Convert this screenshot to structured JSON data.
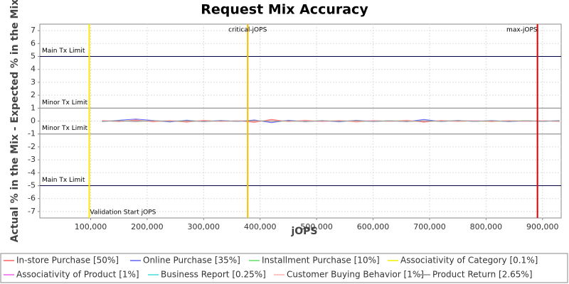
{
  "chart_data": {
    "type": "line",
    "title": "Request Mix Accuracy",
    "x_label": "jOPS",
    "y_label": "Actual % in the Mix - Expected % in the Mix",
    "xlim": [
      10000,
      933000
    ],
    "ylim": [
      -7.5,
      7.5
    ],
    "xticks": [
      {
        "value": 100000,
        "label": "100,000"
      },
      {
        "value": 200000,
        "label": "200,000"
      },
      {
        "value": 300000,
        "label": "300,000"
      },
      {
        "value": 400000,
        "label": "400,000"
      },
      {
        "value": 500000,
        "label": "500,000"
      },
      {
        "value": 600000,
        "label": "600,000"
      },
      {
        "value": 700000,
        "label": "700,000"
      },
      {
        "value": 800000,
        "label": "800,000"
      },
      {
        "value": 900000,
        "label": "900,000"
      }
    ],
    "yticks": [
      -7,
      -6,
      -5,
      -4,
      -3,
      -2,
      -1,
      0,
      1,
      2,
      3,
      4,
      5,
      6,
      7
    ],
    "grid": true,
    "limits": [
      {
        "label": "Main Tx Limit",
        "value": 5,
        "color": "#000040"
      },
      {
        "label": "Minor Tx Limit",
        "value": 1,
        "color": "#808080"
      },
      {
        "label": "Minor Tx Limit",
        "value": -1,
        "color": "#808080"
      },
      {
        "label": "Main Tx Limit",
        "value": -5,
        "color": "#000040"
      }
    ],
    "markers": [
      {
        "label": "Validation Start jOPS",
        "value": 97500,
        "color": "#ffe800"
      },
      {
        "label": "critical-jOPS",
        "value": 378000,
        "color": "#f0c000"
      },
      {
        "label": "max-jOPS",
        "value": 891000,
        "color": "#e00000"
      }
    ],
    "x": [
      120000,
      150000,
      180000,
      210000,
      240000,
      270000,
      300000,
      330000,
      360000,
      390000,
      420000,
      450000,
      480000,
      510000,
      540000,
      570000,
      600000,
      630000,
      660000,
      690000,
      720000,
      750000,
      780000,
      810000,
      840000,
      870000,
      900000,
      930000
    ],
    "series": [
      {
        "name": "In-store Purchase [50%]",
        "color": "#ff6060",
        "values": [
          0.05,
          -0.05,
          0.08,
          -0.06,
          0.04,
          -0.08,
          0.06,
          -0.04,
          0.03,
          -0.1,
          0.12,
          -0.05,
          0.06,
          -0.04,
          0.05,
          -0.07,
          0.04,
          -0.03,
          0.06,
          -0.08,
          0.05,
          -0.04,
          0.03,
          -0.05,
          0.04,
          -0.02,
          0.03,
          -0.04
        ]
      },
      {
        "name": "Online Purchase [35%]",
        "color": "#6060ff",
        "values": [
          -0.04,
          0.06,
          0.15,
          0.05,
          -0.07,
          0.07,
          -0.05,
          0.05,
          -0.03,
          0.08,
          -0.12,
          0.06,
          -0.05,
          0.04,
          -0.06,
          0.06,
          -0.04,
          0.03,
          -0.05,
          0.12,
          -0.04,
          0.05,
          -0.03,
          0.04,
          -0.05,
          0.03,
          -0.03,
          0.04
        ]
      },
      {
        "name": "Installment Purchase [10%]",
        "color": "#60e060",
        "values": [
          0.01,
          -0.02,
          0.03,
          -0.01,
          0.02,
          -0.03,
          0.02,
          -0.01,
          0.01,
          -0.02,
          0.03,
          -0.02,
          0.01,
          -0.01,
          0.02,
          -0.02,
          0.01,
          -0.01,
          0.02,
          -0.02,
          0.01,
          -0.01,
          0.01,
          -0.02,
          0.01,
          -0.01,
          0.01,
          -0.01
        ]
      },
      {
        "name": "Associativity of Category [0.1%]",
        "color": "#f0f000",
        "values": [
          0,
          0.01,
          0,
          -0.01,
          0,
          0.01,
          0,
          -0.01,
          0,
          0.01,
          0,
          -0.01,
          0,
          0.01,
          0,
          -0.01,
          0,
          0.01,
          0,
          -0.01,
          0,
          0.01,
          0,
          -0.01,
          0,
          0.01,
          0,
          0
        ]
      },
      {
        "name": "Associativity of Product [1%]",
        "color": "#f060f0",
        "values": [
          0.02,
          -0.01,
          0.01,
          -0.02,
          0.02,
          -0.01,
          0.01,
          -0.02,
          0.01,
          -0.01,
          0.02,
          -0.01,
          0.01,
          -0.02,
          0.01,
          -0.01,
          0.02,
          -0.01,
          0.01,
          -0.02,
          0.01,
          -0.01,
          0.02,
          -0.01,
          0.01,
          -0.02,
          0.01,
          -0.01
        ]
      },
      {
        "name": "Business Report [0.25%]",
        "color": "#40e0e0",
        "values": [
          -0.01,
          0.01,
          -0.02,
          0.01,
          -0.01,
          0.02,
          -0.01,
          0.01,
          -0.01,
          0.02,
          -0.01,
          0.01,
          -0.02,
          0.01,
          -0.01,
          0.01,
          -0.02,
          0.01,
          -0.01,
          0.02,
          -0.01,
          0.01,
          -0.01,
          0.01,
          -0.02,
          0.01,
          -0.01,
          0.01
        ]
      },
      {
        "name": "Customer Buying Behavior [1%]",
        "color": "#ffb0b0",
        "values": [
          0.03,
          -0.02,
          0.02,
          -0.03,
          0.03,
          -0.02,
          0.02,
          -0.03,
          0.02,
          -0.02,
          0.04,
          -0.02,
          0.03,
          -0.02,
          0.02,
          -0.03,
          0.02,
          -0.02,
          0.03,
          -0.02,
          0.02,
          -0.03,
          0.02,
          -0.02,
          0.03,
          -0.02,
          0.02,
          -0.02
        ]
      },
      {
        "name": "Product Return [2.65%]",
        "color": "#909090",
        "values": [
          -0.03,
          0.03,
          -0.04,
          0.04,
          -0.03,
          0.03,
          -0.04,
          0.03,
          -0.02,
          0.04,
          -0.03,
          0.03,
          -0.04,
          0.03,
          -0.03,
          0.04,
          -0.03,
          0.02,
          -0.04,
          0.03,
          -0.03,
          0.04,
          -0.02,
          0.03,
          -0.03,
          0.03,
          -0.02,
          0.03
        ]
      }
    ]
  }
}
